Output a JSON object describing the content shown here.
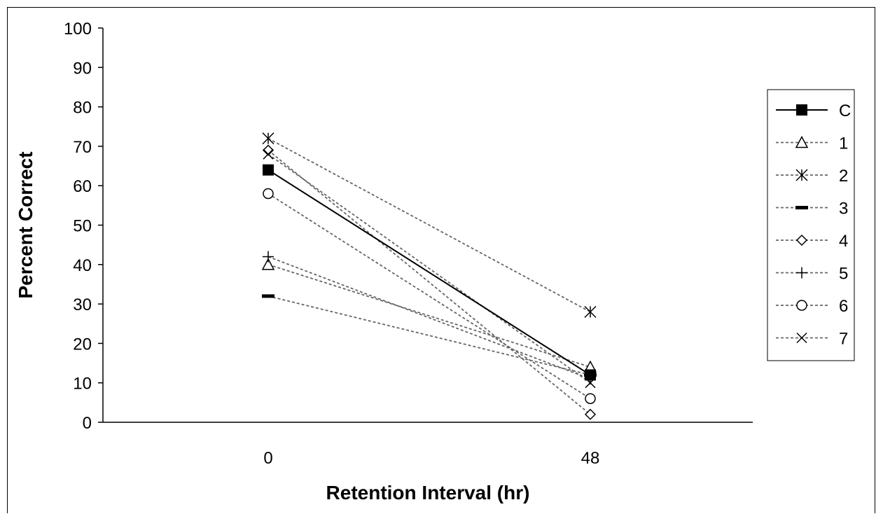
{
  "chart_data": {
    "type": "line",
    "title": "",
    "xlabel": "Retention Interval (hr)",
    "ylabel": "Percent Correct",
    "categories": [
      "0",
      "48"
    ],
    "ylim": [
      0,
      100
    ],
    "yticks": [
      0,
      10,
      20,
      30,
      40,
      50,
      60,
      70,
      80,
      90,
      100
    ],
    "grid": false,
    "legend_position": "right",
    "series": [
      {
        "name": "C",
        "values": [
          64,
          12
        ],
        "marker": "filled-square",
        "line": "solid",
        "color": "#000000"
      },
      {
        "name": "1",
        "values": [
          40,
          14
        ],
        "marker": "triangle",
        "line": "dashed",
        "color": "#666666"
      },
      {
        "name": "2",
        "values": [
          72,
          28
        ],
        "marker": "asterisk",
        "line": "dashed",
        "color": "#666666"
      },
      {
        "name": "3",
        "values": [
          32,
          12
        ],
        "marker": "dash",
        "line": "dashed",
        "color": "#666666"
      },
      {
        "name": "4",
        "values": [
          69,
          2
        ],
        "marker": "diamond",
        "line": "dashed",
        "color": "#666666"
      },
      {
        "name": "5",
        "values": [
          42,
          11
        ],
        "marker": "plus",
        "line": "dashed",
        "color": "#666666"
      },
      {
        "name": "6",
        "values": [
          58,
          6
        ],
        "marker": "circle",
        "line": "dashed",
        "color": "#666666"
      },
      {
        "name": "7",
        "values": [
          68,
          10
        ],
        "marker": "cross",
        "line": "dashed",
        "color": "#666666"
      }
    ]
  }
}
